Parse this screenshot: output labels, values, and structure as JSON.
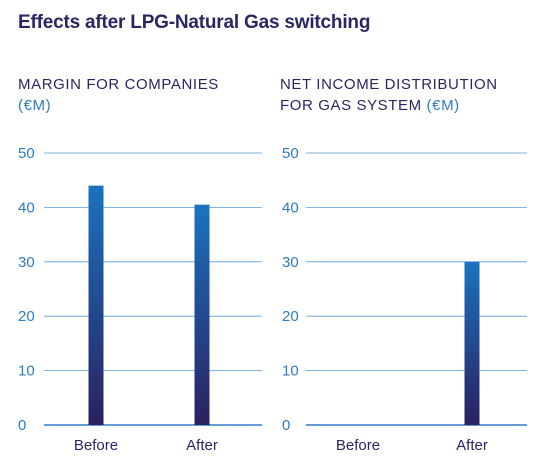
{
  "title": "Effects after LPG-Natural Gas switching",
  "colors": {
    "title": "#2a2664",
    "unit": "#2f7bc0",
    "grid": "#5b9bd5",
    "axis": "#2f7bc0",
    "bar_top": "#1a73bf",
    "bar_bottom": "#2a2160"
  },
  "charts": [
    {
      "heading_line1": "MARGIN FOR COMPANIES",
      "heading_line2": "",
      "unit": "(€M)"
    },
    {
      "heading_line1": "NET INCOME DISTRIBUTION",
      "heading_line2": "FOR GAS SYSTEM",
      "unit": "(€M)"
    }
  ],
  "chart_data": [
    {
      "type": "bar",
      "title": "MARGIN FOR COMPANIES (€M)",
      "categories": [
        "Before",
        "After"
      ],
      "values": [
        44,
        40.5
      ],
      "ylim": [
        0,
        50
      ],
      "yticks": [
        0,
        10,
        20,
        30,
        40,
        50
      ],
      "grid": true
    },
    {
      "type": "bar",
      "title": "NET INCOME DISTRIBUTION FOR GAS SYSTEM (€M)",
      "categories": [
        "Before",
        "After"
      ],
      "values": [
        0,
        30
      ],
      "ylim": [
        0,
        50
      ],
      "yticks": [
        0,
        10,
        20,
        30,
        40,
        50
      ],
      "grid": true
    }
  ]
}
